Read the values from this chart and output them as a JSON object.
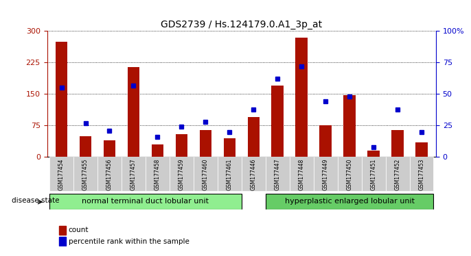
{
  "title": "GDS2739 / Hs.124179.0.A1_3p_at",
  "categories": [
    "GSM177454",
    "GSM177455",
    "GSM177456",
    "GSM177457",
    "GSM177458",
    "GSM177459",
    "GSM177460",
    "GSM177461",
    "GSM177446",
    "GSM177447",
    "GSM177448",
    "GSM177449",
    "GSM177450",
    "GSM177451",
    "GSM177452",
    "GSM177453"
  ],
  "counts": [
    275,
    50,
    40,
    215,
    30,
    55,
    65,
    45,
    95,
    170,
    285,
    75,
    148,
    15,
    65,
    35
  ],
  "percentiles": [
    55,
    27,
    21,
    57,
    16,
    24,
    28,
    20,
    38,
    62,
    72,
    44,
    48,
    8,
    38,
    20
  ],
  "group1_label": "normal terminal duct lobular unit",
  "group2_label": "hyperplastic enlarged lobular unit",
  "group1_count": 8,
  "group2_count": 8,
  "bar_color": "#aa1100",
  "dot_color": "#0000cc",
  "left_yticks": [
    0,
    75,
    150,
    225,
    300
  ],
  "right_yticks": [
    0,
    25,
    50,
    75,
    100
  ],
  "right_ylabel": "100%",
  "group1_color": "#90ee90",
  "group2_color": "#66cc66",
  "disease_state_label": "disease state",
  "legend_count_label": "count",
  "legend_pct_label": "percentile rank within the sample"
}
